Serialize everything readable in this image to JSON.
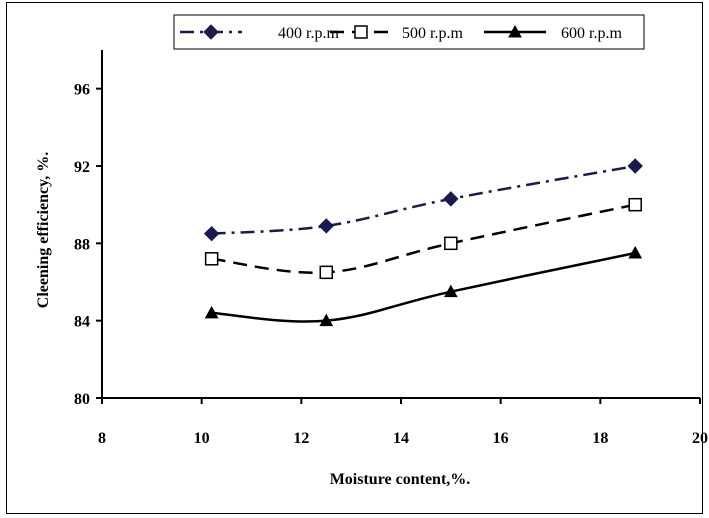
{
  "chart_data": {
    "type": "line",
    "title": "",
    "xlabel": "Moisture content,%.",
    "ylabel": "Cleening efficiency, %.",
    "xlim": [
      8,
      20
    ],
    "ylim": [
      80,
      98
    ],
    "x_ticks": [
      "8",
      "10",
      "12",
      "14",
      "16",
      "18",
      "20"
    ],
    "y_ticks": [
      "80",
      "84",
      "88",
      "92",
      "96"
    ],
    "grid": false,
    "legend_position": "top",
    "series": [
      {
        "name": "400 r.p.m",
        "x": [
          10.2,
          12.5,
          15.0,
          18.7
        ],
        "y": [
          88.5,
          88.9,
          90.3,
          92.0
        ],
        "marker": "diamond",
        "line_style": "dash-dot",
        "color": "#1a1a4d"
      },
      {
        "name": "500 r.p.m",
        "x": [
          10.2,
          12.5,
          15.0,
          18.7
        ],
        "y": [
          87.2,
          86.5,
          88.0,
          90.0
        ],
        "marker": "square-open",
        "line_style": "dashed",
        "color": "#000000"
      },
      {
        "name": "600 r.p.m",
        "x": [
          10.2,
          12.5,
          15.0,
          18.7
        ],
        "y": [
          84.4,
          84.0,
          85.5,
          87.5
        ],
        "marker": "triangle",
        "line_style": "solid",
        "color": "#000000"
      }
    ]
  }
}
